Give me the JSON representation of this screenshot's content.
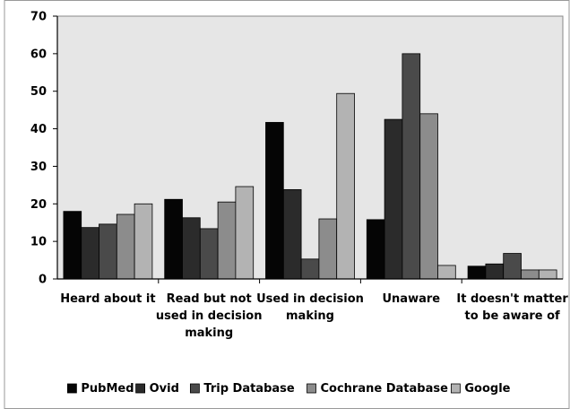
{
  "chart_data": {
    "type": "bar",
    "title": "",
    "xlabel": "",
    "ylabel": "",
    "categories": [
      [
        "Heard about it"
      ],
      [
        "Read but not",
        "used in decision",
        "making"
      ],
      [
        "Used in decision",
        "making"
      ],
      [
        "Unaware"
      ],
      [
        "It doesn't matter",
        "to be aware of"
      ]
    ],
    "series": [
      {
        "name": "PubMed",
        "color": "#050505",
        "values": [
          18,
          21.2,
          41.7,
          15.8,
          3.4
        ]
      },
      {
        "name": "Ovid",
        "color": "#2b2b2b",
        "values": [
          13.7,
          16.3,
          23.8,
          42.5,
          4
        ]
      },
      {
        "name": "Trip Database",
        "color": "#4a4a4a",
        "values": [
          14.6,
          13.4,
          5.3,
          60,
          6.8
        ]
      },
      {
        "name": "Cochrane Database",
        "color": "#8c8c8c",
        "values": [
          17.2,
          20.5,
          16,
          44,
          2.4
        ]
      },
      {
        "name": "Google",
        "color": "#b3b3b3",
        "values": [
          20,
          24.6,
          49.4,
          3.6,
          2.4
        ]
      }
    ],
    "ylim": [
      0,
      70
    ],
    "yticks": [
      0,
      10,
      20,
      30,
      40,
      50,
      60,
      70
    ],
    "grid": false,
    "plot_background": "#e6e6e6",
    "legend_position": "bottom"
  }
}
